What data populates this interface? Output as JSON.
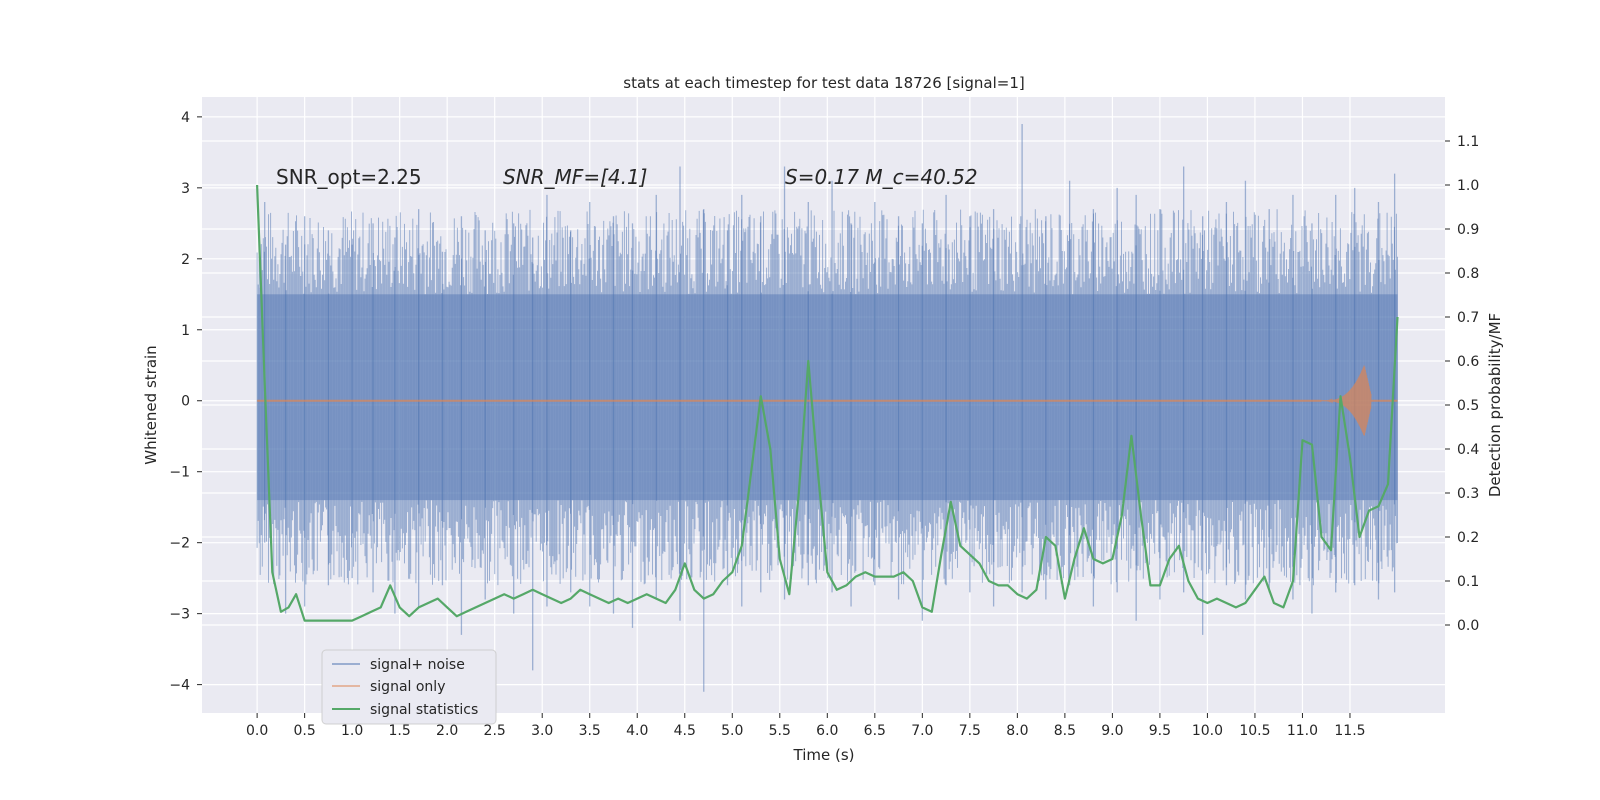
{
  "chart_data": {
    "type": "line",
    "title": "stats at each timestep for test data 18726 [signal=1]",
    "xlabel": "Time (s)",
    "ylabel_left": "Whitened strain",
    "ylabel_right": "Detection probability/MF",
    "xlim": [
      -0.58,
      12.5
    ],
    "ylim_left": [
      -4.4,
      4.28
    ],
    "ylim_right": [
      -0.2,
      1.2
    ],
    "x_ticks": [
      "0.0",
      "0.5",
      "1.0",
      "1.5",
      "2.0",
      "2.5",
      "3.0",
      "3.5",
      "4.0",
      "4.5",
      "5.0",
      "5.5",
      "6.0",
      "6.5",
      "7.0",
      "7.5",
      "8.0",
      "8.5",
      "9.0",
      "9.5",
      "10.0",
      "10.5",
      "11.0",
      "11.5"
    ],
    "y_ticks_left": [
      "−4",
      "−3",
      "−2",
      "−1",
      "0",
      "1",
      "2",
      "3",
      "4"
    ],
    "y_ticks_right": [
      "0.0",
      "0.1",
      "0.2",
      "0.3",
      "0.4",
      "0.5",
      "0.6",
      "0.7",
      "0.8",
      "0.9",
      "1.0",
      "1.1"
    ],
    "grid": true,
    "legend_position": "lower-left",
    "annotations": {
      "snr_opt": "SNR_opt=2.25",
      "snr_mf": "SNR_MF=[4.1]",
      "s_mc": "S=0.17   M_c=40.52"
    },
    "series": [
      {
        "name": "signal+ noise",
        "color": "#4c72b0",
        "axis": "left",
        "x_range": [
          0.0,
          12.0
        ],
        "band": [
          -1.4,
          1.5
        ],
        "peaks_x": [
          0.08,
          0.3,
          0.5,
          0.75,
          1.0,
          1.22,
          1.45,
          1.7,
          1.95,
          2.15,
          2.4,
          2.7,
          2.9,
          3.05,
          3.3,
          3.5,
          3.75,
          3.95,
          4.2,
          4.45,
          4.7,
          4.95,
          5.1,
          5.3,
          5.55,
          5.8,
          6.05,
          6.25,
          6.5,
          6.75,
          7.0,
          7.25,
          7.5,
          7.75,
          8.05,
          8.3,
          8.55,
          8.8,
          9.05,
          9.25,
          9.5,
          9.75,
          9.95,
          10.2,
          10.4,
          10.65,
          10.9,
          11.1,
          11.35,
          11.55,
          11.8,
          11.97
        ],
        "peaks_pos": [
          2.8,
          2.2,
          2.6,
          2.4,
          2.2,
          2.5,
          2.3,
          2.7,
          2.1,
          2.6,
          2.4,
          2.5,
          2.3,
          2.9,
          2.4,
          2.8,
          2.6,
          2.5,
          2.9,
          3.3,
          2.7,
          2.4,
          2.9,
          2.6,
          3.3,
          2.8,
          3.1,
          2.5,
          2.8,
          2.6,
          2.5,
          2.9,
          2.6,
          2.7,
          3.9,
          2.6,
          3.1,
          2.7,
          3.0,
          2.9,
          2.7,
          3.3,
          2.6,
          2.8,
          3.1,
          2.7,
          2.9,
          2.5,
          2.9,
          3.0,
          2.8,
          3.2
        ],
        "peaks_neg": [
          -2.0,
          -3.0,
          -2.9,
          -2.6,
          -2.5,
          -2.7,
          -3.0,
          -2.9,
          -2.6,
          -3.3,
          -2.8,
          -3.0,
          -3.8,
          -2.9,
          -2.7,
          -2.9,
          -3.0,
          -3.2,
          -2.8,
          -3.1,
          -4.1,
          -2.6,
          -2.9,
          -2.7,
          -2.8,
          -2.6,
          -2.7,
          -2.9,
          -2.6,
          -2.8,
          -3.1,
          -2.6,
          -2.7,
          -2.9,
          -2.7,
          -2.8,
          -2.6,
          -2.9,
          -2.7,
          -3.1,
          -2.8,
          -2.7,
          -3.3,
          -2.6,
          -2.8,
          -2.7,
          -2.8,
          -3.0,
          -2.7,
          -2.6,
          -2.8,
          -2.7
        ]
      },
      {
        "name": "signal only",
        "color": "#dd8452",
        "axis": "left",
        "chirp_start": 11.2,
        "chirp_peak_time": 11.65,
        "chirp_amplitude": 0.5,
        "chirp_end": 11.72
      },
      {
        "name": "signal statistics",
        "color": "#55a868",
        "axis": "right",
        "x": [
          0.0,
          0.08,
          0.16,
          0.25,
          0.33,
          0.41,
          0.5,
          0.6,
          0.7,
          0.8,
          0.9,
          1.0,
          1.1,
          1.2,
          1.3,
          1.4,
          1.5,
          1.6,
          1.7,
          1.8,
          1.9,
          2.0,
          2.1,
          2.2,
          2.3,
          2.4,
          2.5,
          2.6,
          2.7,
          2.8,
          2.9,
          3.0,
          3.1,
          3.2,
          3.3,
          3.4,
          3.5,
          3.6,
          3.7,
          3.8,
          3.9,
          4.0,
          4.1,
          4.2,
          4.3,
          4.4,
          4.5,
          4.6,
          4.7,
          4.8,
          4.9,
          5.0,
          5.1,
          5.2,
          5.3,
          5.4,
          5.5,
          5.6,
          5.7,
          5.8,
          5.9,
          6.0,
          6.1,
          6.2,
          6.3,
          6.4,
          6.5,
          6.6,
          6.7,
          6.8,
          6.9,
          7.0,
          7.1,
          7.2,
          7.3,
          7.4,
          7.5,
          7.6,
          7.7,
          7.8,
          7.9,
          8.0,
          8.1,
          8.2,
          8.3,
          8.4,
          8.5,
          8.6,
          8.7,
          8.8,
          8.9,
          9.0,
          9.1,
          9.2,
          9.3,
          9.4,
          9.5,
          9.6,
          9.7,
          9.8,
          9.9,
          10.0,
          10.1,
          10.2,
          10.3,
          10.4,
          10.5,
          10.6,
          10.7,
          10.8,
          10.9,
          11.0,
          11.1,
          11.2,
          11.3,
          11.4,
          11.5,
          11.6,
          11.7,
          11.8,
          11.9,
          12.0
        ],
        "values": [
          1.0,
          0.55,
          0.12,
          0.03,
          0.04,
          0.07,
          0.01,
          0.01,
          0.01,
          0.01,
          0.01,
          0.01,
          0.02,
          0.03,
          0.04,
          0.09,
          0.04,
          0.02,
          0.04,
          0.05,
          0.06,
          0.04,
          0.02,
          0.03,
          0.04,
          0.05,
          0.06,
          0.07,
          0.06,
          0.07,
          0.08,
          0.07,
          0.06,
          0.05,
          0.06,
          0.08,
          0.07,
          0.06,
          0.05,
          0.06,
          0.05,
          0.06,
          0.07,
          0.06,
          0.05,
          0.08,
          0.14,
          0.08,
          0.06,
          0.07,
          0.1,
          0.12,
          0.18,
          0.35,
          0.52,
          0.4,
          0.15,
          0.07,
          0.3,
          0.6,
          0.35,
          0.12,
          0.08,
          0.09,
          0.11,
          0.12,
          0.11,
          0.11,
          0.11,
          0.12,
          0.1,
          0.04,
          0.03,
          0.16,
          0.28,
          0.18,
          0.16,
          0.14,
          0.1,
          0.09,
          0.09,
          0.07,
          0.06,
          0.08,
          0.2,
          0.18,
          0.06,
          0.15,
          0.22,
          0.15,
          0.14,
          0.15,
          0.25,
          0.43,
          0.25,
          0.09,
          0.09,
          0.15,
          0.18,
          0.1,
          0.06,
          0.05,
          0.06,
          0.05,
          0.04,
          0.05,
          0.08,
          0.11,
          0.05,
          0.04,
          0.1,
          0.42,
          0.41,
          0.2,
          0.17,
          0.52,
          0.38,
          0.2,
          0.26,
          0.27,
          0.32,
          0.7
        ]
      }
    ]
  }
}
